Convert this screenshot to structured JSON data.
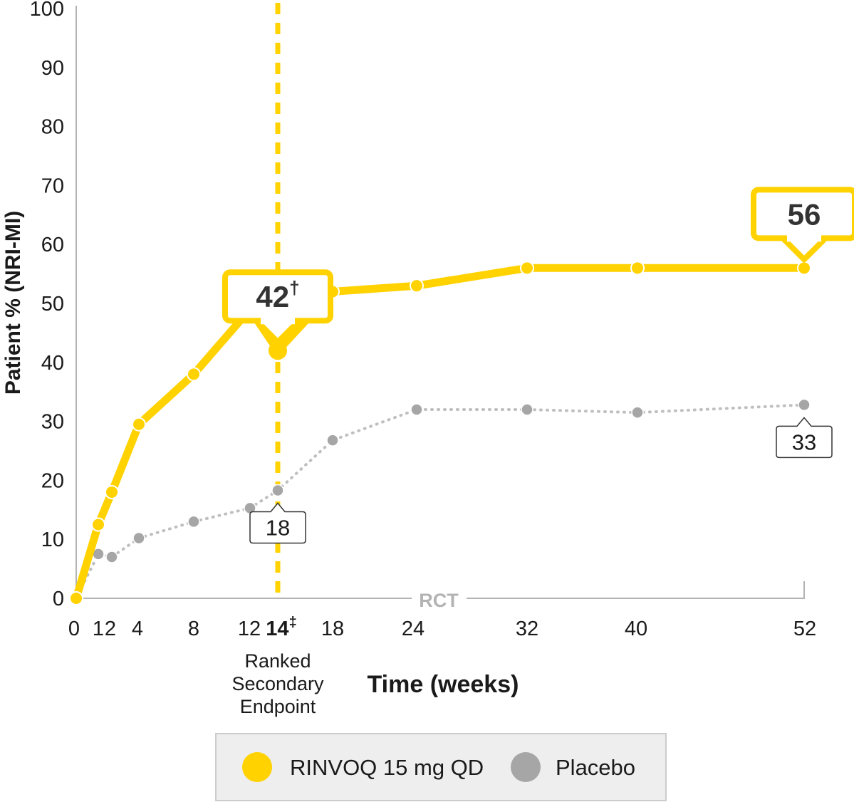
{
  "chart_data": {
    "type": "line",
    "ylabel": "Patient % (NRI-MI)",
    "xlabel": "Time (weeks)",
    "ylim": [
      0,
      100
    ],
    "yticks": [
      0,
      10,
      20,
      30,
      40,
      50,
      60,
      70,
      80,
      90,
      100
    ],
    "x_ticks": [
      {
        "x": 0,
        "label": "0",
        "bold": false
      },
      {
        "x": 1,
        "label": "1",
        "bold": false
      },
      {
        "x": 2,
        "label": "2",
        "bold": false
      },
      {
        "x": 4,
        "label": "4",
        "bold": false
      },
      {
        "x": 8,
        "label": "8",
        "bold": false
      },
      {
        "x": 12,
        "label": "12",
        "bold": false
      },
      {
        "x": 14,
        "label": "14",
        "sup": "‡",
        "bold": true
      },
      {
        "x": 18,
        "label": "18",
        "bold": false
      },
      {
        "x": 24,
        "label": "24",
        "bold": false
      },
      {
        "x": 32,
        "label": "32",
        "bold": false
      },
      {
        "x": 40,
        "label": "40",
        "bold": false
      },
      {
        "x": 52,
        "label": "52",
        "bold": false
      }
    ],
    "endpoint_week": 14,
    "endpoint_note": [
      "Ranked",
      "Secondary",
      "Endpoint"
    ],
    "period_label": "RCT",
    "series": [
      {
        "name": "RINVOQ 15 mg QD",
        "color": "#FFD200",
        "style": "solid",
        "x": [
          0,
          1,
          2,
          4,
          8,
          12,
          14,
          18,
          24,
          32,
          40,
          52
        ],
        "values": [
          0,
          12.5,
          18,
          29.5,
          38,
          49,
          42,
          52,
          53,
          56,
          56,
          56
        ]
      },
      {
        "name": "Placebo",
        "color": "#A6A6A6",
        "style": "dotted",
        "x": [
          0,
          1,
          2,
          4,
          8,
          12,
          14,
          18,
          24,
          32,
          40,
          52
        ],
        "values": [
          0,
          7.5,
          7,
          10.2,
          13,
          15.3,
          18.3,
          26.8,
          32,
          32,
          31.5,
          32.8
        ]
      }
    ],
    "callouts": [
      {
        "series": 0,
        "x": 14,
        "text": "42",
        "sup": "†",
        "style": "big"
      },
      {
        "series": 0,
        "x": 52,
        "text": "56",
        "sup": "",
        "style": "big"
      },
      {
        "series": 1,
        "x": 14,
        "text": "18",
        "sup": "",
        "style": "small"
      },
      {
        "series": 1,
        "x": 52,
        "text": "33",
        "sup": "",
        "style": "small"
      }
    ],
    "legend": {
      "position": "bottom-center",
      "items": [
        {
          "label": "RINVOQ 15 mg QD",
          "color": "#FFD200"
        },
        {
          "label": "Placebo",
          "color": "#A6A6A6"
        }
      ]
    }
  }
}
